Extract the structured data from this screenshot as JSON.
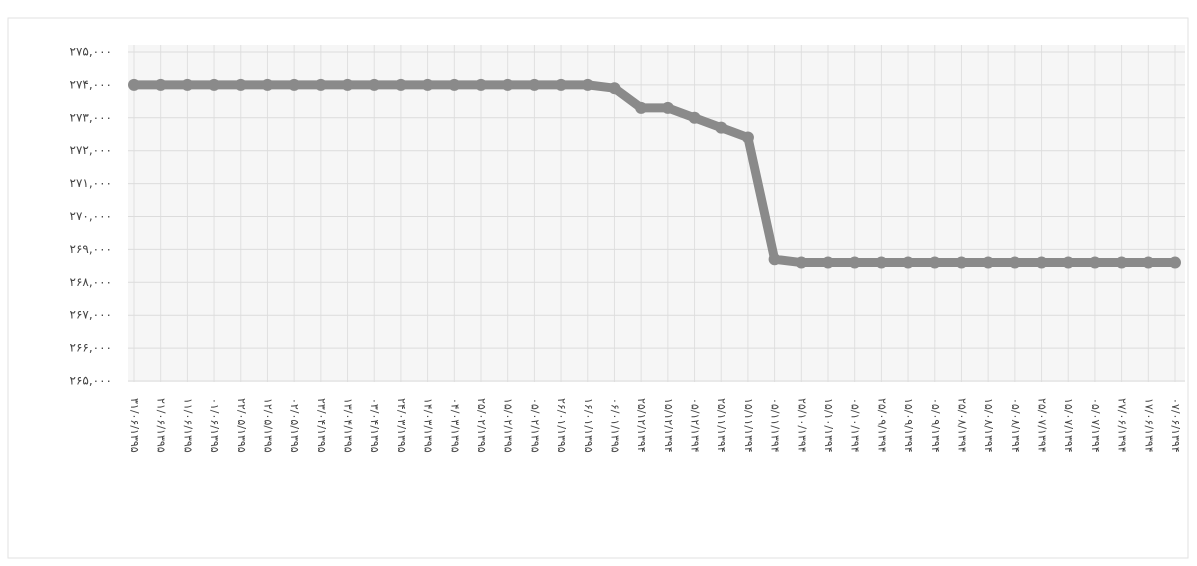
{
  "chart_data": {
    "type": "line",
    "categories": [
      "۳۱/۰۶/۱۳۹۵",
      "۲۱/۰۶/۱۳۹۵",
      "۱۱/۰۶/۱۳۹۵",
      "۰۱/۰۶/۱۳۹۵",
      "۲۲/۰۵/۱۳۹۵",
      "۱۲/۰۵/۱۳۹۵",
      "۰۲/۰۵/۱۳۹۵",
      "۲۳/۰۴/۱۳۹۵",
      "۱۳/۰۴/۱۳۹۵",
      "۰۳/۰۴/۱۳۹۵",
      "۲۴/۰۳/۱۳۹۵",
      "۱۴/۰۳/۱۳۹۵",
      "۰۴/۰۳/۱۳۹۵",
      "۲۵/۰۲/۱۳۹۵",
      "۱۵/۰۲/۱۳۹۵",
      "۰۵/۰۲/۱۳۹۵",
      "۲۶/۰۱/۱۳۹۵",
      "۱۶/۰۱/۱۳۹۵",
      "۰۶/۰۱/۱۳۹۵",
      "۲۵/۱۲/۱۳۹۴",
      "۱۵/۱۲/۱۳۹۴",
      "۰۵/۱۲/۱۳۹۴",
      "۲۵/۱۱/۱۳۹۴",
      "۱۵/۱۱/۱۳۹۴",
      "۰۵/۱۱/۱۳۹۴",
      "۲۵/۱۰/۱۳۹۴",
      "۱۵/۱۰/۱۳۹۴",
      "۰۵/۱۰/۱۳۹۴",
      "۲۵/۰۹/۱۳۹۴",
      "۱۵/۰۹/۱۳۹۴",
      "۰۵/۰۹/۱۳۹۴",
      "۲۵/۰۸/۱۳۹۴",
      "۱۵/۰۸/۱۳۹۴",
      "۰۵/۰۸/۱۳۹۴",
      "۲۵/۰۷/۱۳۹۴",
      "۱۵/۰۷/۱۳۹۴",
      "۰۵/۰۷/۱۳۹۴",
      "۲۷/۰۶/۱۳۹۴",
      "۱۷/۰۶/۱۳۹۴",
      "۰۷/۰۶/۱۳۹۴"
    ],
    "values": [
      274000,
      274000,
      274000,
      274000,
      274000,
      274000,
      274000,
      274000,
      274000,
      274000,
      274000,
      274000,
      274000,
      274000,
      274000,
      274000,
      274000,
      274000,
      273900,
      273300,
      273300,
      273000,
      272700,
      272400,
      268700,
      268600,
      268600,
      268600,
      268600,
      268600,
      268600,
      268600,
      268600,
      268600,
      268600,
      268600,
      268600,
      268600,
      268600,
      268600
    ],
    "color": "#8a8a8a",
    "ylim": [
      265000,
      275000
    ],
    "yticks": [
      {
        "value": 265000,
        "label": "۲۶۵,۰۰۰"
      },
      {
        "value": 266000,
        "label": "۲۶۶,۰۰۰"
      },
      {
        "value": 267000,
        "label": "۲۶۷,۰۰۰"
      },
      {
        "value": 268000,
        "label": "۲۶۸,۰۰۰"
      },
      {
        "value": 269000,
        "label": "۲۶۹,۰۰۰"
      },
      {
        "value": 270000,
        "label": "۲۷۰,۰۰۰"
      },
      {
        "value": 271000,
        "label": "۲۷۱,۰۰۰"
      },
      {
        "value": 272000,
        "label": "۲۷۲,۰۰۰"
      },
      {
        "value": 273000,
        "label": "۲۷۳,۰۰۰"
      },
      {
        "value": 274000,
        "label": "۲۷۴,۰۰۰"
      },
      {
        "value": 275000,
        "label": "۲۷۵,۰۰۰"
      }
    ],
    "grid": true
  }
}
